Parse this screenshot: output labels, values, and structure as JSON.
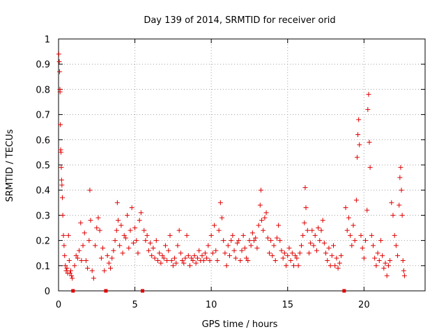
{
  "chart_data": {
    "type": "scatter",
    "title": "Day 139 of 2014, SRMTID for receiver orid",
    "xlabel": "GPS time / hours",
    "ylabel": "SRMTID / TECUs",
    "xlim": [
      0,
      24
    ],
    "ylim": [
      0,
      1
    ],
    "xticks": [
      "0",
      "5",
      "10",
      "15",
      "20"
    ],
    "yticks": [
      "0",
      "0.1",
      "0.2",
      "0.3",
      "0.4",
      "0.5",
      "0.6",
      "0.7",
      "0.8",
      "0.9",
      "1"
    ],
    "grid": true,
    "marker": "+",
    "color": "#e00000",
    "gap_markers_x": [
      0.95,
      3.1,
      5.5,
      18.7
    ],
    "series": [
      {
        "name": "SRMTID",
        "points": [
          [
            0.02,
            0.94
          ],
          [
            0.05,
            0.91
          ],
          [
            0.07,
            0.87
          ],
          [
            0.09,
            0.8
          ],
          [
            0.1,
            0.79
          ],
          [
            0.12,
            0.66
          ],
          [
            0.14,
            0.56
          ],
          [
            0.16,
            0.55
          ],
          [
            0.18,
            0.49
          ],
          [
            0.2,
            0.44
          ],
          [
            0.22,
            0.42
          ],
          [
            0.25,
            0.37
          ],
          [
            0.28,
            0.3
          ],
          [
            0.32,
            0.22
          ],
          [
            0.36,
            0.18
          ],
          [
            0.4,
            0.14
          ],
          [
            0.45,
            0.1
          ],
          [
            0.5,
            0.08
          ],
          [
            0.55,
            0.09
          ],
          [
            0.6,
            0.07
          ],
          [
            0.65,
            0.22
          ],
          [
            0.7,
            0.12
          ],
          [
            0.75,
            0.07
          ],
          [
            0.8,
            0.08
          ],
          [
            0.85,
            0.06
          ],
          [
            0.9,
            0.05
          ],
          [
            1.05,
            0.1
          ],
          [
            1.15,
            0.14
          ],
          [
            1.25,
            0.13
          ],
          [
            1.35,
            0.16
          ],
          [
            1.45,
            0.27
          ],
          [
            1.5,
            0.12
          ],
          [
            1.6,
            0.18
          ],
          [
            1.7,
            0.23
          ],
          [
            1.8,
            0.12
          ],
          [
            1.9,
            0.09
          ],
          [
            2.0,
            0.2
          ],
          [
            2.05,
            0.4
          ],
          [
            2.1,
            0.28
          ],
          [
            2.2,
            0.08
          ],
          [
            2.3,
            0.05
          ],
          [
            2.4,
            0.18
          ],
          [
            2.5,
            0.25
          ],
          [
            2.6,
            0.29
          ],
          [
            2.7,
            0.24
          ],
          [
            2.8,
            0.13
          ],
          [
            2.9,
            0.17
          ],
          [
            3.0,
            0.08
          ],
          [
            3.2,
            0.14
          ],
          [
            3.3,
            0.11
          ],
          [
            3.4,
            0.09
          ],
          [
            3.5,
            0.13
          ],
          [
            3.6,
            0.16
          ],
          [
            3.7,
            0.2
          ],
          [
            3.8,
            0.24
          ],
          [
            3.85,
            0.35
          ],
          [
            3.9,
            0.28
          ],
          [
            4.0,
            0.18
          ],
          [
            4.1,
            0.26
          ],
          [
            4.2,
            0.15
          ],
          [
            4.3,
            0.22
          ],
          [
            4.4,
            0.21
          ],
          [
            4.5,
            0.3
          ],
          [
            4.6,
            0.17
          ],
          [
            4.7,
            0.24
          ],
          [
            4.8,
            0.33
          ],
          [
            4.9,
            0.19
          ],
          [
            5.0,
            0.25
          ],
          [
            5.1,
            0.2
          ],
          [
            5.2,
            0.15
          ],
          [
            5.3,
            0.28
          ],
          [
            5.4,
            0.31
          ],
          [
            5.6,
            0.24
          ],
          [
            5.7,
            0.2
          ],
          [
            5.8,
            0.22
          ],
          [
            5.9,
            0.16
          ],
          [
            6.0,
            0.19
          ],
          [
            6.1,
            0.14
          ],
          [
            6.2,
            0.17
          ],
          [
            6.3,
            0.13
          ],
          [
            6.4,
            0.2
          ],
          [
            6.5,
            0.12
          ],
          [
            6.6,
            0.15
          ],
          [
            6.7,
            0.11
          ],
          [
            6.8,
            0.14
          ],
          [
            6.9,
            0.13
          ],
          [
            7.0,
            0.18
          ],
          [
            7.1,
            0.12
          ],
          [
            7.2,
            0.16
          ],
          [
            7.3,
            0.22
          ],
          [
            7.4,
            0.12
          ],
          [
            7.5,
            0.1
          ],
          [
            7.6,
            0.13
          ],
          [
            7.7,
            0.11
          ],
          [
            7.8,
            0.18
          ],
          [
            7.9,
            0.24
          ],
          [
            8.0,
            0.15
          ],
          [
            8.1,
            0.12
          ],
          [
            8.2,
            0.11
          ],
          [
            8.3,
            0.13
          ],
          [
            8.4,
            0.22
          ],
          [
            8.5,
            0.14
          ],
          [
            8.6,
            0.1
          ],
          [
            8.7,
            0.13
          ],
          [
            8.8,
            0.12
          ],
          [
            8.9,
            0.14
          ],
          [
            9.0,
            0.11
          ],
          [
            9.1,
            0.13
          ],
          [
            9.2,
            0.16
          ],
          [
            9.3,
            0.12
          ],
          [
            9.4,
            0.14
          ],
          [
            9.5,
            0.12
          ],
          [
            9.6,
            0.15
          ],
          [
            9.7,
            0.13
          ],
          [
            9.8,
            0.18
          ],
          [
            9.9,
            0.12
          ],
          [
            10.0,
            0.22
          ],
          [
            10.1,
            0.15
          ],
          [
            10.2,
            0.26
          ],
          [
            10.3,
            0.16
          ],
          [
            10.4,
            0.12
          ],
          [
            10.5,
            0.24
          ],
          [
            10.6,
            0.35
          ],
          [
            10.7,
            0.29
          ],
          [
            10.8,
            0.2
          ],
          [
            10.9,
            0.15
          ],
          [
            11.0,
            0.1
          ],
          [
            11.1,
            0.18
          ],
          [
            11.2,
            0.14
          ],
          [
            11.3,
            0.2
          ],
          [
            11.4,
            0.22
          ],
          [
            11.5,
            0.16
          ],
          [
            11.6,
            0.13
          ],
          [
            11.7,
            0.19
          ],
          [
            11.8,
            0.2
          ],
          [
            11.9,
            0.12
          ],
          [
            12.0,
            0.16
          ],
          [
            12.1,
            0.22
          ],
          [
            12.2,
            0.17
          ],
          [
            12.3,
            0.13
          ],
          [
            12.4,
            0.12
          ],
          [
            12.5,
            0.2
          ],
          [
            12.6,
            0.18
          ],
          [
            12.7,
            0.23
          ],
          [
            12.8,
            0.2
          ],
          [
            12.9,
            0.21
          ],
          [
            13.0,
            0.17
          ],
          [
            13.1,
            0.26
          ],
          [
            13.2,
            0.34
          ],
          [
            13.25,
            0.4
          ],
          [
            13.3,
            0.28
          ],
          [
            13.4,
            0.24
          ],
          [
            13.5,
            0.29
          ],
          [
            13.6,
            0.31
          ],
          [
            13.7,
            0.21
          ],
          [
            13.8,
            0.15
          ],
          [
            13.9,
            0.2
          ],
          [
            14.0,
            0.14
          ],
          [
            14.1,
            0.18
          ],
          [
            14.2,
            0.12
          ],
          [
            14.3,
            0.21
          ],
          [
            14.4,
            0.26
          ],
          [
            14.5,
            0.2
          ],
          [
            14.6,
            0.16
          ],
          [
            14.7,
            0.13
          ],
          [
            14.8,
            0.15
          ],
          [
            14.9,
            0.1
          ],
          [
            15.0,
            0.14
          ],
          [
            15.1,
            0.17
          ],
          [
            15.2,
            0.12
          ],
          [
            15.3,
            0.15
          ],
          [
            15.4,
            0.1
          ],
          [
            15.5,
            0.14
          ],
          [
            15.6,
            0.13
          ],
          [
            15.7,
            0.1
          ],
          [
            15.8,
            0.15
          ],
          [
            15.9,
            0.18
          ],
          [
            16.0,
            0.22
          ],
          [
            16.1,
            0.27
          ],
          [
            16.15,
            0.41
          ],
          [
            16.2,
            0.33
          ],
          [
            16.3,
            0.24
          ],
          [
            16.4,
            0.15
          ],
          [
            16.5,
            0.19
          ],
          [
            16.6,
            0.24
          ],
          [
            16.7,
            0.18
          ],
          [
            16.8,
            0.22
          ],
          [
            16.9,
            0.16
          ],
          [
            17.0,
            0.25
          ],
          [
            17.1,
            0.2
          ],
          [
            17.2,
            0.24
          ],
          [
            17.3,
            0.28
          ],
          [
            17.4,
            0.19
          ],
          [
            17.5,
            0.15
          ],
          [
            17.6,
            0.12
          ],
          [
            17.7,
            0.17
          ],
          [
            17.8,
            0.1
          ],
          [
            17.9,
            0.14
          ],
          [
            18.0,
            0.18
          ],
          [
            18.1,
            0.1
          ],
          [
            18.2,
            0.13
          ],
          [
            18.3,
            0.09
          ],
          [
            18.4,
            0.11
          ],
          [
            18.5,
            0.14
          ],
          [
            18.8,
            0.33
          ],
          [
            18.9,
            0.24
          ],
          [
            19.0,
            0.29
          ],
          [
            19.1,
            0.22
          ],
          [
            19.2,
            0.18
          ],
          [
            19.3,
            0.26
          ],
          [
            19.4,
            0.2
          ],
          [
            19.5,
            0.36
          ],
          [
            19.55,
            0.53
          ],
          [
            19.6,
            0.62
          ],
          [
            19.65,
            0.68
          ],
          [
            19.7,
            0.58
          ],
          [
            19.8,
            0.22
          ],
          [
            19.9,
            0.17
          ],
          [
            20.0,
            0.13
          ],
          [
            20.1,
            0.2
          ],
          [
            20.2,
            0.32
          ],
          [
            20.25,
            0.72
          ],
          [
            20.3,
            0.78
          ],
          [
            20.35,
            0.59
          ],
          [
            20.4,
            0.49
          ],
          [
            20.5,
            0.22
          ],
          [
            20.6,
            0.18
          ],
          [
            20.7,
            0.13
          ],
          [
            20.8,
            0.1
          ],
          [
            20.9,
            0.15
          ],
          [
            21.0,
            0.12
          ],
          [
            21.1,
            0.2
          ],
          [
            21.2,
            0.14
          ],
          [
            21.3,
            0.09
          ],
          [
            21.4,
            0.11
          ],
          [
            21.5,
            0.06
          ],
          [
            21.6,
            0.1
          ],
          [
            21.7,
            0.12
          ],
          [
            21.8,
            0.35
          ],
          [
            21.9,
            0.3
          ],
          [
            22.0,
            0.22
          ],
          [
            22.1,
            0.18
          ],
          [
            22.2,
            0.14
          ],
          [
            22.3,
            0.34
          ],
          [
            22.35,
            0.45
          ],
          [
            22.4,
            0.49
          ],
          [
            22.45,
            0.4
          ],
          [
            22.5,
            0.3
          ],
          [
            22.55,
            0.12
          ],
          [
            22.6,
            0.08
          ],
          [
            22.65,
            0.06
          ]
        ]
      }
    ]
  }
}
